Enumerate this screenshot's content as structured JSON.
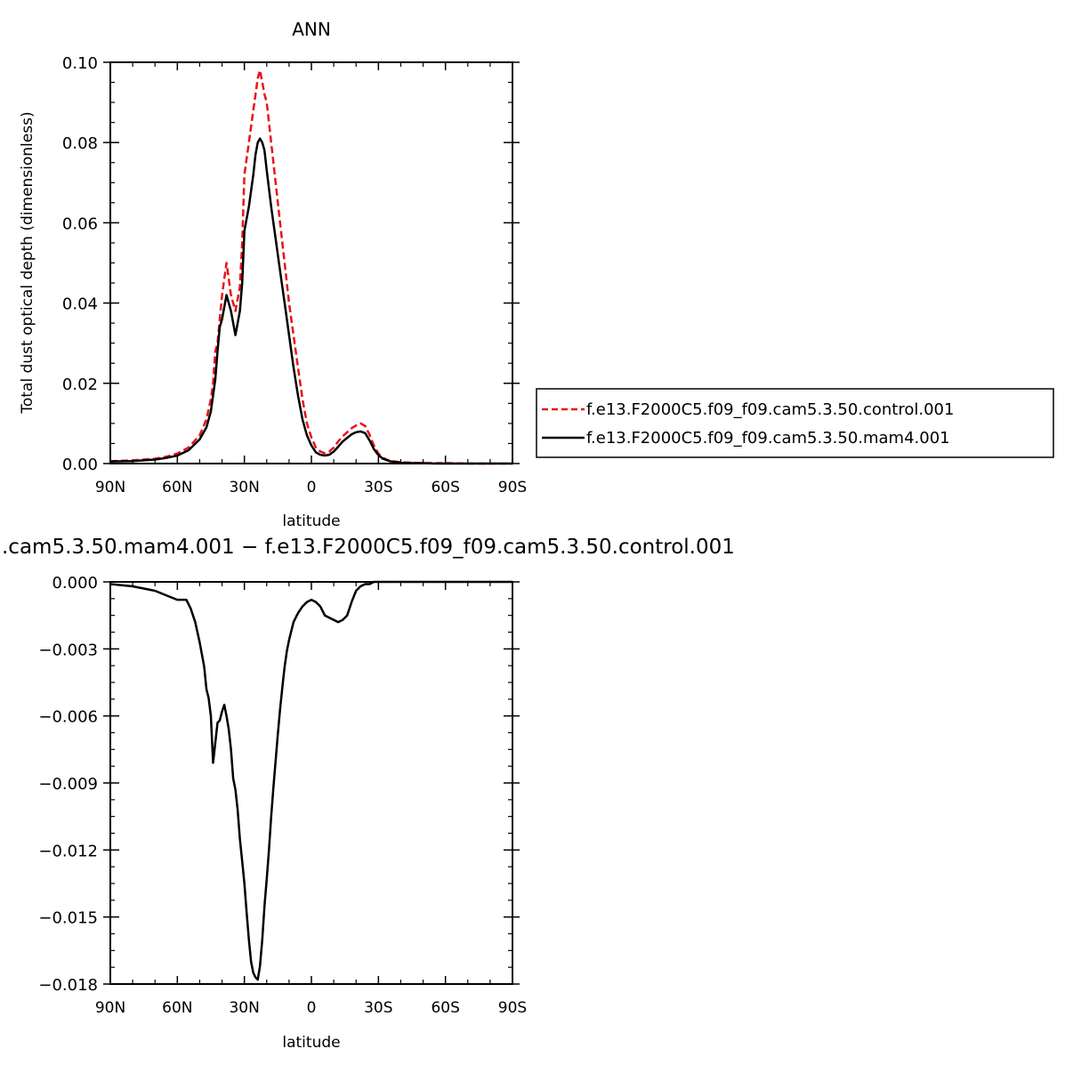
{
  "top_title": "ANN",
  "bottom_title": ".cam5.3.50.mam4.001 − f.e13.F2000C5.f09_f09.cam5.3.50.control.001",
  "legend": {
    "entries": [
      {
        "label": "f.e13.F2000C5.f09_f09.cam5.3.50.control.001",
        "color": "#e8141a",
        "dash": true
      },
      {
        "label": "f.e13.F2000C5.f09_f09.cam5.3.50.mam4.001",
        "color": "#000000",
        "dash": false
      }
    ]
  },
  "chart_data": [
    {
      "type": "line",
      "title": "ANN",
      "xlabel": "latitude",
      "ylabel": "Total dust optical depth (dimensionless)",
      "xlim": [
        90,
        -90
      ],
      "ylim": [
        0,
        0.1
      ],
      "x_ticks": [
        90,
        60,
        30,
        0,
        -30,
        -60,
        -90
      ],
      "x_tick_labels": [
        "90N",
        "60N",
        "30N",
        "0",
        "30S",
        "60S",
        "90S"
      ],
      "y_ticks": [
        0,
        0.02,
        0.04,
        0.06,
        0.08,
        0.1
      ],
      "y_tick_labels": [
        "0.00",
        "0.02",
        "0.04",
        "0.06",
        "0.08",
        "0.10"
      ],
      "series": [
        {
          "name": "f.e13.F2000C5.f09_f09.cam5.3.50.control.001",
          "color": "#e8141a",
          "x": [
            90,
            80,
            70,
            65,
            60,
            55,
            50,
            47,
            45,
            44,
            43,
            42,
            41,
            40,
            38,
            36,
            34,
            32,
            31,
            30,
            28,
            26,
            25,
            24,
            23,
            22,
            21,
            20,
            18,
            16,
            14,
            12,
            10,
            8,
            6,
            4,
            2,
            0,
            -2,
            -4,
            -6,
            -8,
            -10,
            -12,
            -14,
            -16,
            -18,
            -20,
            -22,
            -24,
            -26,
            -28,
            -30,
            -32,
            -35,
            -40,
            -45,
            -50,
            -55,
            -60,
            -70,
            -80,
            -90
          ],
          "y": [
            0.0006,
            0.0008,
            0.0012,
            0.0017,
            0.0025,
            0.004,
            0.007,
            0.011,
            0.016,
            0.02,
            0.028,
            0.03,
            0.036,
            0.042,
            0.05,
            0.042,
            0.038,
            0.044,
            0.055,
            0.072,
            0.08,
            0.088,
            0.092,
            0.096,
            0.098,
            0.095,
            0.092,
            0.09,
            0.08,
            0.07,
            0.06,
            0.05,
            0.04,
            0.032,
            0.024,
            0.016,
            0.01,
            0.0065,
            0.004,
            0.003,
            0.0026,
            0.003,
            0.004,
            0.0055,
            0.0068,
            0.0078,
            0.0088,
            0.0095,
            0.01,
            0.0094,
            0.0072,
            0.0045,
            0.0025,
            0.0014,
            0.0007,
            0.0003,
            0.0002,
            0.0001,
            0.0001,
            0.0001,
            0.0,
            0.0,
            0.0
          ]
        },
        {
          "name": "f.e13.F2000C5.f09_f09.cam5.3.50.mam4.001",
          "color": "#000000",
          "x": [
            90,
            80,
            70,
            65,
            60,
            55,
            50,
            47,
            45,
            44,
            43,
            42,
            41,
            40,
            38,
            36,
            34,
            32,
            31,
            30,
            28,
            26,
            25,
            24,
            23,
            22,
            21,
            20,
            18,
            16,
            14,
            12,
            10,
            8,
            6,
            4,
            2,
            0,
            -2,
            -4,
            -6,
            -8,
            -10,
            -12,
            -14,
            -16,
            -18,
            -20,
            -22,
            -24,
            -26,
            -28,
            -30,
            -32,
            -35,
            -40,
            -45,
            -50,
            -55,
            -60,
            -70,
            -80,
            -90
          ],
          "y": [
            0.0005,
            0.0006,
            0.001,
            0.0014,
            0.002,
            0.0033,
            0.006,
            0.009,
            0.013,
            0.017,
            0.021,
            0.028,
            0.034,
            0.036,
            0.042,
            0.038,
            0.032,
            0.038,
            0.045,
            0.058,
            0.064,
            0.072,
            0.077,
            0.08,
            0.081,
            0.08,
            0.078,
            0.073,
            0.064,
            0.056,
            0.048,
            0.04,
            0.032,
            0.024,
            0.017,
            0.011,
            0.007,
            0.0045,
            0.0028,
            0.0022,
            0.002,
            0.0022,
            0.003,
            0.0042,
            0.0055,
            0.0064,
            0.0073,
            0.0078,
            0.008,
            0.0076,
            0.0058,
            0.0036,
            0.0021,
            0.0012,
            0.0006,
            0.0002,
            0.0001,
            0.0001,
            0.0,
            0.0,
            0.0,
            0.0,
            0.0
          ]
        }
      ]
    },
    {
      "type": "line",
      "title": ".cam5.3.50.mam4.001 − f.e13.F2000C5.f09_f09.cam5.3.50.control.001",
      "xlabel": "latitude",
      "ylabel": "",
      "xlim": [
        90,
        -90
      ],
      "ylim": [
        -0.018,
        0.0
      ],
      "x_ticks": [
        90,
        60,
        30,
        0,
        -30,
        -60,
        -90
      ],
      "x_tick_labels": [
        "90N",
        "60N",
        "30N",
        "0",
        "30S",
        "60S",
        "90S"
      ],
      "y_ticks": [
        0.0,
        -0.003,
        -0.006,
        -0.009,
        -0.012,
        -0.015,
        -0.018
      ],
      "y_tick_labels": [
        "0.000",
        "−0.003",
        "−0.006",
        "−0.009",
        "−0.012",
        "−0.015",
        "−0.018"
      ],
      "series": [
        {
          "color": "#000000",
          "x": [
            90,
            80,
            70,
            65,
            60,
            56,
            54,
            52,
            50,
            48,
            47,
            46,
            45,
            44,
            43,
            42,
            41,
            40,
            39,
            38,
            37,
            36,
            35,
            34,
            33,
            32,
            31,
            30,
            29,
            28,
            27,
            26,
            25,
            24,
            23,
            22,
            21,
            20,
            19,
            18,
            17,
            16,
            15,
            14,
            13,
            12,
            11,
            10,
            8,
            6,
            4,
            2,
            0,
            -2,
            -4,
            -6,
            -8,
            -10,
            -12,
            -14,
            -16,
            -18,
            -20,
            -22,
            -24,
            -26,
            -28,
            -30,
            -32,
            -34,
            -36,
            -40,
            -45,
            -50,
            -60,
            -70,
            -80,
            -90
          ],
          "y": [
            -0.0001,
            -0.0002,
            -0.0004,
            -0.0006,
            -0.0008,
            -0.0008,
            -0.0012,
            -0.0018,
            -0.0027,
            -0.0038,
            -0.0048,
            -0.0052,
            -0.006,
            -0.0081,
            -0.0072,
            -0.0063,
            -0.0062,
            -0.0058,
            -0.0055,
            -0.006,
            -0.0066,
            -0.0075,
            -0.0088,
            -0.0093,
            -0.0102,
            -0.0115,
            -0.0125,
            -0.0135,
            -0.0148,
            -0.016,
            -0.017,
            -0.0175,
            -0.0177,
            -0.0178,
            -0.0172,
            -0.016,
            -0.0145,
            -0.0133,
            -0.012,
            -0.0105,
            -0.0092,
            -0.008,
            -0.0068,
            -0.0057,
            -0.0047,
            -0.0038,
            -0.0031,
            -0.0026,
            -0.0018,
            -0.0014,
            -0.0011,
            -0.0009,
            -0.0008,
            -0.0009,
            -0.0011,
            -0.0015,
            -0.0016,
            -0.0017,
            -0.0018,
            -0.0017,
            -0.0015,
            -0.0009,
            -0.0004,
            -0.0002,
            -0.0001,
            -0.0001,
            0.0,
            0.0,
            0.0,
            0.0,
            0.0,
            0.0,
            0.0,
            0.0,
            0.0,
            0.0,
            0.0,
            0.0
          ]
        }
      ]
    }
  ]
}
